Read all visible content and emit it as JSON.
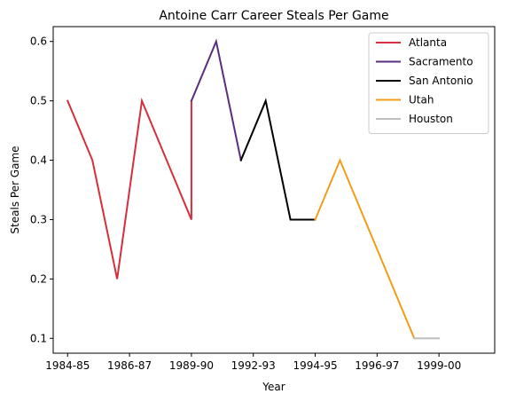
{
  "chart_data": {
    "type": "line",
    "title": "Antoine Carr Career Steals Per Game",
    "xlabel": "Year",
    "ylabel": "Steals Per Game",
    "xlim": [
      -0.35,
      10.35
    ],
    "ylim": [
      0.075,
      0.625
    ],
    "x_ticks": [
      {
        "pos": 0,
        "label": "1984-85"
      },
      {
        "pos": 1.5,
        "label": "1986-87"
      },
      {
        "pos": 3,
        "label": "1989-90"
      },
      {
        "pos": 4.5,
        "label": "1992-93"
      },
      {
        "pos": 6,
        "label": "1994-95"
      },
      {
        "pos": 7.5,
        "label": "1996-97"
      },
      {
        "pos": 9,
        "label": "1999-00"
      }
    ],
    "y_ticks": [
      0.1,
      0.2,
      0.3,
      0.4,
      0.5,
      0.6
    ],
    "legend_position": "top-right",
    "series": [
      {
        "name": "Atlanta",
        "color": "#d62f3b",
        "x": [
          0,
          0.6,
          1.2,
          1.8,
          3,
          3
        ],
        "y": [
          0.5,
          0.4,
          0.2,
          0.5,
          0.3,
          0.5
        ]
      },
      {
        "name": "Sacramento",
        "color": "#5a2d81",
        "x": [
          3,
          3.6,
          4.2
        ],
        "y": [
          0.5,
          0.6,
          0.4
        ]
      },
      {
        "name": "San Antonio",
        "color": "#000000",
        "x": [
          4.2,
          4.8,
          5.4,
          6
        ],
        "y": [
          0.4,
          0.5,
          0.3,
          0.3
        ]
      },
      {
        "name": "Utah",
        "color": "#f39c1a",
        "x": [
          6,
          6.6,
          8.4
        ],
        "y": [
          0.3,
          0.4,
          0.1
        ]
      },
      {
        "name": "Houston",
        "color": "#bfbfbf",
        "x": [
          8.4,
          9
        ],
        "y": [
          0.1,
          0.1
        ]
      }
    ]
  }
}
